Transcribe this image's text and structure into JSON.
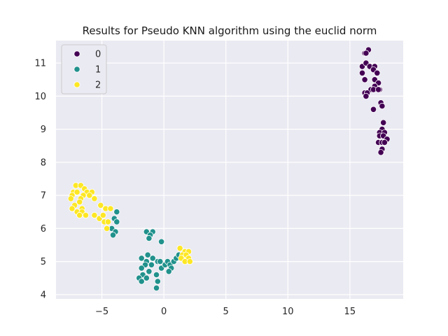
{
  "chart_data": {
    "type": "scatter",
    "title": "Results for Pseudo KNN algorithm using the euclid norm",
    "xlabel": "",
    "ylabel": "",
    "xlim": [
      -8.7,
      19.3
    ],
    "ylim": [
      3.87,
      11.68
    ],
    "xticks": [
      -5,
      0,
      5,
      10,
      15
    ],
    "yticks": [
      4,
      5,
      6,
      7,
      8,
      9,
      10,
      11
    ],
    "grid": true,
    "legend": {
      "position": "top-left"
    },
    "series": [
      {
        "name": "0",
        "color": "#440154",
        "points": [
          [
            16.2,
            11.3
          ],
          [
            16.5,
            11.4
          ],
          [
            16.3,
            11.3
          ],
          [
            16.0,
            10.9
          ],
          [
            16.3,
            11.0
          ],
          [
            16.6,
            10.9
          ],
          [
            17.0,
            10.9
          ],
          [
            16.9,
            10.8
          ],
          [
            17.2,
            10.7
          ],
          [
            16.0,
            10.7
          ],
          [
            16.2,
            10.5
          ],
          [
            17.0,
            10.5
          ],
          [
            17.3,
            10.4
          ],
          [
            17.0,
            10.3
          ],
          [
            16.7,
            10.2
          ],
          [
            17.4,
            10.2
          ],
          [
            16.2,
            10.1
          ],
          [
            16.4,
            10.1
          ],
          [
            16.9,
            10.2
          ],
          [
            16.3,
            10.0
          ],
          [
            17.3,
            10.2
          ],
          [
            17.5,
            9.8
          ],
          [
            17.6,
            9.7
          ],
          [
            16.9,
            9.6
          ],
          [
            17.7,
            9.2
          ],
          [
            17.6,
            9.0
          ],
          [
            17.4,
            8.9
          ],
          [
            17.8,
            8.9
          ],
          [
            17.4,
            8.8
          ],
          [
            17.7,
            8.8
          ],
          [
            17.3,
            8.6
          ],
          [
            17.6,
            8.6
          ],
          [
            18.0,
            8.7
          ],
          [
            17.8,
            8.6
          ],
          [
            17.6,
            8.4
          ],
          [
            17.5,
            8.3
          ]
        ]
      },
      {
        "name": "1",
        "color": "#21918c",
        "points": [
          [
            -3.8,
            6.5
          ],
          [
            -4.0,
            6.3
          ],
          [
            -3.8,
            6.2
          ],
          [
            -4.2,
            6.0
          ],
          [
            -3.9,
            5.9
          ],
          [
            -4.1,
            5.8
          ],
          [
            -1.4,
            5.9
          ],
          [
            -0.9,
            5.9
          ],
          [
            -1.1,
            5.8
          ],
          [
            -1.2,
            5.7
          ],
          [
            -0.2,
            5.6
          ],
          [
            -1.8,
            5.1
          ],
          [
            -1.3,
            5.2
          ],
          [
            -0.9,
            5.1
          ],
          [
            -1.4,
            5.0
          ],
          [
            -0.5,
            5.0
          ],
          [
            -0.3,
            5.0
          ],
          [
            -1.5,
            4.9
          ],
          [
            -1.0,
            4.9
          ],
          [
            -1.8,
            4.8
          ],
          [
            -1.2,
            4.7
          ],
          [
            -0.2,
            4.8
          ],
          [
            0.1,
            4.9
          ],
          [
            0.3,
            5.0
          ],
          [
            0.5,
            4.9
          ],
          [
            0.6,
            4.8
          ],
          [
            0.8,
            5.0
          ],
          [
            1.0,
            5.1
          ],
          [
            1.2,
            5.2
          ],
          [
            0.4,
            4.7
          ],
          [
            -1.7,
            4.6
          ],
          [
            -1.4,
            4.5
          ],
          [
            -0.6,
            4.6
          ],
          [
            -2.0,
            4.5
          ],
          [
            -0.5,
            4.4
          ],
          [
            -1.8,
            4.4
          ],
          [
            -0.6,
            4.2
          ]
        ]
      },
      {
        "name": "2",
        "color": "#fde725",
        "points": [
          [
            -7.1,
            7.3
          ],
          [
            -6.7,
            7.3
          ],
          [
            -6.4,
            7.2
          ],
          [
            -7.3,
            7.1
          ],
          [
            -7.0,
            7.1
          ],
          [
            -6.2,
            7.1
          ],
          [
            -5.8,
            7.1
          ],
          [
            -7.4,
            7.0
          ],
          [
            -6.5,
            7.0
          ],
          [
            -6.0,
            7.0
          ],
          [
            -7.5,
            6.9
          ],
          [
            -6.7,
            6.9
          ],
          [
            -5.6,
            6.9
          ],
          [
            -6.8,
            6.8
          ],
          [
            -7.2,
            6.7
          ],
          [
            -7.4,
            6.6
          ],
          [
            -6.6,
            6.6
          ],
          [
            -5.1,
            6.7
          ],
          [
            -4.7,
            6.6
          ],
          [
            -4.3,
            6.6
          ],
          [
            -7.0,
            6.5
          ],
          [
            -6.6,
            6.5
          ],
          [
            -6.8,
            6.4
          ],
          [
            -6.3,
            6.4
          ],
          [
            -5.6,
            6.4
          ],
          [
            -5.2,
            6.3
          ],
          [
            -4.9,
            6.4
          ],
          [
            -4.8,
            6.2
          ],
          [
            -4.5,
            6.2
          ],
          [
            -4.6,
            6.0
          ],
          [
            1.3,
            5.4
          ],
          [
            1.7,
            5.3
          ],
          [
            2.0,
            5.3
          ],
          [
            1.5,
            5.2
          ],
          [
            1.8,
            5.2
          ],
          [
            1.4,
            5.1
          ],
          [
            2.0,
            5.1
          ],
          [
            1.7,
            5.0
          ],
          [
            2.1,
            5.0
          ]
        ]
      }
    ]
  }
}
